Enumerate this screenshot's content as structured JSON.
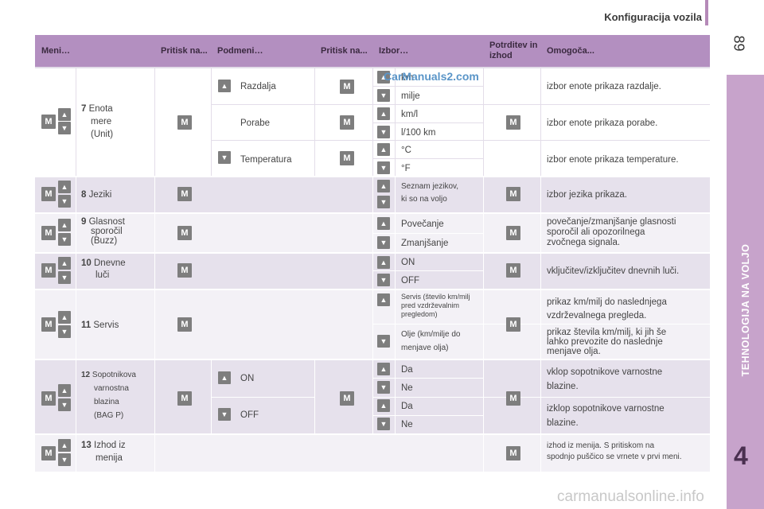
{
  "header": {
    "title": "Konfiguracija vozila",
    "page_number": "89"
  },
  "side": {
    "section": "TEHNOLOGIJA NA VOLJO",
    "chapter": "4"
  },
  "watermarks": {
    "top": "CarManuals2.com",
    "bottom": "carmanualsonline.info"
  },
  "icons": {
    "up": "▲",
    "down": "▼",
    "m": "M"
  },
  "table": {
    "headers": [
      "Meni…",
      "Pritisk na...",
      "Podmeni…",
      "Pritisk na...",
      "Izbor…",
      "Potrditev in izhod",
      "Omogoča..."
    ],
    "unit": {
      "num": "7",
      "label_1": "Enota",
      "label_2": "mere",
      "label_3": "(Unit)",
      "sub": [
        "Razdalja",
        "Porabe",
        "Temperatura"
      ],
      "opts": [
        "km",
        "milje",
        "km/l",
        "l/100 km",
        "°C",
        "°F"
      ],
      "desc": [
        "izbor enote prikaza razdalje.",
        "izbor enote prikaza porabe.",
        "izbor enote prikaza temperature."
      ]
    },
    "lang": {
      "num": "8",
      "label": "Jeziki",
      "opt_1": "Seznam jezikov,",
      "opt_2": "ki so na voljo",
      "desc": "izbor jezika prikaza."
    },
    "voice": {
      "num": "9",
      "label_1": "Glasnost",
      "label_2": "sporočil",
      "label_3": "(Buzz)",
      "opts": [
        "Povečanje",
        "Zmanjšanje"
      ],
      "desc_1": "povečanje/zmanjšanje glasnosti",
      "desc_2": "sporočil ali opozorilnega",
      "desc_3": "zvočnega signala."
    },
    "lights": {
      "num": "10",
      "label_1": "Dnevne",
      "label_2": "luči",
      "opts": [
        "ON",
        "OFF"
      ],
      "desc": "vključitev/izključitev dnevnih luči."
    },
    "service": {
      "num": "11",
      "label": "Servis",
      "opt1_1": "Servis (število km/milj",
      "opt1_2": "pred vzdrževalnim",
      "opt1_3": "pregledom)",
      "opt2_1": "Olje (km/milje do",
      "opt2_2": "menjave olja)",
      "desc1_1": "prikaz km/milj do naslednjega",
      "desc1_2": "vzdrževalnega pregleda.",
      "desc2_1": "prikaz števila km/milj, ki jih še",
      "desc2_2": "lahko prevozite do naslednje",
      "desc2_3": "menjave olja."
    },
    "airbag": {
      "num": "12",
      "label_1": "Sopotnikova",
      "label_2": "varnostna",
      "label_3": "blazina",
      "label_4": "(BAG P)",
      "sub": [
        "ON",
        "OFF"
      ],
      "opts": [
        "Da",
        "Ne",
        "Da",
        "Ne"
      ],
      "desc1_1": "vklop sopotnikove varnostne",
      "desc1_2": "blazine.",
      "desc2_1": "izklop sopotnikove varnostne",
      "desc2_2": "blazine."
    },
    "exit": {
      "num": "13",
      "label_1": "Izhod iz",
      "label_2": "menija",
      "desc_1": "izhod iz menija. S pritiskom na",
      "desc_2": "spodnjo puščico se vrnete v prvi meni."
    }
  }
}
